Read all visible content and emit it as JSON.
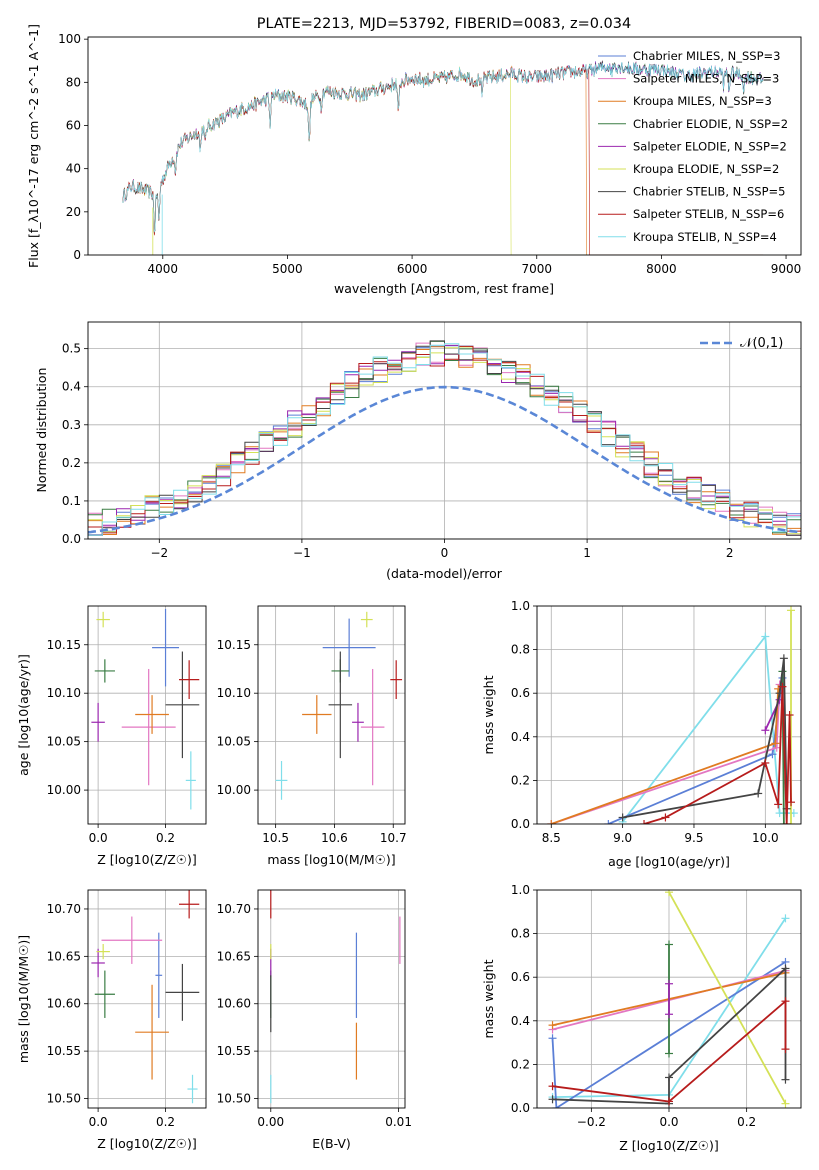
{
  "series": [
    {
      "name": "Chabrier MILES, N_SSP=3",
      "color": "#5b7fd6"
    },
    {
      "name": "Salpeter MILES, N_SSP=3",
      "color": "#e377c2"
    },
    {
      "name": "Kroupa MILES, N_SSP=3",
      "color": "#e07b22"
    },
    {
      "name": "Chabrier ELODIE, N_SSP=2",
      "color": "#3a7d44"
    },
    {
      "name": "Salpeter ELODIE, N_SSP=2",
      "color": "#9b27af"
    },
    {
      "name": "Kroupa ELODIE, N_SSP=2",
      "color": "#d4e157"
    },
    {
      "name": "Chabrier STELIB, N_SSP=5",
      "color": "#444444"
    },
    {
      "name": "Salpeter STELIB, N_SSP=6",
      "color": "#b71c1c"
    },
    {
      "name": "Kroupa STELIB, N_SSP=4",
      "color": "#80deea"
    }
  ],
  "chart_data": [
    {
      "type": "line",
      "title": "PLATE=2213, MJD=53792, FIBERID=0083, z=0.034",
      "xlabel": "wavelength [Angstrom, rest frame]",
      "ylabel": "Flux [f_λ10^-17 erg cm^-2 s^-1 A^-1]",
      "xlim": [
        3400,
        9120
      ],
      "ylim": [
        0,
        101
      ],
      "xticks": [
        "4000",
        "5000",
        "6000",
        "7000",
        "8000",
        "9000"
      ],
      "yticks": [
        "0",
        "20",
        "40",
        "60",
        "80",
        "100"
      ],
      "legend_position": "top-right",
      "spectrum_envelope": [
        [
          3680,
          27
        ],
        [
          3750,
          32
        ],
        [
          3850,
          30
        ],
        [
          3950,
          28
        ],
        [
          4050,
          42
        ],
        [
          4150,
          52
        ],
        [
          4300,
          58
        ],
        [
          4450,
          62
        ],
        [
          4600,
          67
        ],
        [
          4750,
          70
        ],
        [
          4900,
          74
        ],
        [
          5050,
          73
        ],
        [
          5150,
          70
        ],
        [
          5300,
          76
        ],
        [
          5450,
          75
        ],
        [
          5600,
          74
        ],
        [
          5750,
          77
        ],
        [
          5900,
          80
        ],
        [
          6000,
          82
        ],
        [
          6100,
          81
        ],
        [
          6250,
          82
        ],
        [
          6400,
          84
        ],
        [
          6500,
          81
        ],
        [
          6600,
          82
        ],
        [
          6800,
          84
        ],
        [
          6950,
          82
        ],
        [
          7100,
          83
        ],
        [
          7200,
          84
        ],
        [
          7300,
          85
        ],
        [
          7400,
          85
        ],
        [
          7600,
          88
        ],
        [
          7800,
          86
        ],
        [
          8000,
          86
        ],
        [
          8200,
          83
        ],
        [
          8400,
          85
        ],
        [
          8600,
          84
        ],
        [
          8800,
          81
        ]
      ],
      "truncations": [
        {
          "series": 5,
          "drop_at": 6790
        },
        {
          "series": 7,
          "drop_at": 7420
        },
        {
          "series": 2,
          "drop_at": 7395
        }
      ]
    },
    {
      "type": "histogram",
      "xlabel": "(data-model)/error",
      "ylabel": "Normed distribution",
      "xlim": [
        -2.5,
        2.5
      ],
      "ylim": [
        0,
        0.57
      ],
      "xticks": [
        "−2",
        "−1",
        "0",
        "1",
        "2"
      ],
      "yticks": [
        "0.0",
        "0.1",
        "0.2",
        "0.3",
        "0.4",
        "0.5"
      ],
      "bin_width": 0.1,
      "reference": {
        "name": "𝒩(0,1)",
        "mean": 0,
        "sigma": 1
      },
      "legend_position": "top-right"
    },
    {
      "type": "scatter_errorbar",
      "xlabel": "Z [log10(Z/Z☉)]",
      "ylabel": "age  [log10(age/yr)]",
      "xlim": [
        -0.03,
        0.32
      ],
      "ylim": [
        9.965,
        10.19
      ],
      "xticks": [
        "0.0",
        "0.2"
      ],
      "yticks": [
        "10.00",
        "10.05",
        "10.10",
        "10.15"
      ],
      "points": [
        {
          "s": 0,
          "x": 0.2,
          "xerr": 0.04,
          "y": 10.147,
          "yerr": 0.04
        },
        {
          "s": 1,
          "x": 0.15,
          "xerr": 0.08,
          "y": 10.065,
          "yerr": 0.06
        },
        {
          "s": 2,
          "x": 0.16,
          "xerr": 0.05,
          "y": 10.078,
          "yerr": 0.02
        },
        {
          "s": 3,
          "x": 0.02,
          "xerr": 0.03,
          "y": 10.123,
          "yerr": 0.012
        },
        {
          "s": 4,
          "x": 0.0,
          "xerr": 0.02,
          "y": 10.07,
          "yerr": 0.02
        },
        {
          "s": 5,
          "x": 0.015,
          "xerr": 0.02,
          "y": 10.176,
          "yerr": 0.008
        },
        {
          "s": 6,
          "x": 0.25,
          "xerr": 0.05,
          "y": 10.088,
          "yerr": 0.055
        },
        {
          "s": 7,
          "x": 0.27,
          "xerr": 0.03,
          "y": 10.114,
          "yerr": 0.02
        },
        {
          "s": 8,
          "x": 0.275,
          "xerr": 0.015,
          "y": 10.01,
          "yerr": 0.03
        }
      ]
    },
    {
      "type": "scatter_errorbar",
      "xlabel": "mass [log10(M/M☉)]",
      "ylabel": "",
      "xlim": [
        10.47,
        10.72
      ],
      "ylim": [
        9.965,
        10.19
      ],
      "xticks": [
        "10.5",
        "10.6",
        "10.7"
      ],
      "yticks": [
        "10.00",
        "10.05",
        "10.10",
        "10.15"
      ],
      "points": [
        {
          "s": 0,
          "x": 10.625,
          "xerr": 0.045,
          "y": 10.147,
          "yerr": 0.03
        },
        {
          "s": 1,
          "x": 10.665,
          "xerr": 0.02,
          "y": 10.065,
          "yerr": 0.06
        },
        {
          "s": 2,
          "x": 10.57,
          "xerr": 0.025,
          "y": 10.078,
          "yerr": 0.02
        },
        {
          "s": 3,
          "x": 10.61,
          "xerr": 0.015,
          "y": 10.123,
          "yerr": 0.012
        },
        {
          "s": 4,
          "x": 10.64,
          "xerr": 0.01,
          "y": 10.07,
          "yerr": 0.02
        },
        {
          "s": 5,
          "x": 10.655,
          "xerr": 0.01,
          "y": 10.176,
          "yerr": 0.008
        },
        {
          "s": 6,
          "x": 10.61,
          "xerr": 0.02,
          "y": 10.088,
          "yerr": 0.055
        },
        {
          "s": 7,
          "x": 10.705,
          "xerr": 0.01,
          "y": 10.114,
          "yerr": 0.02
        },
        {
          "s": 8,
          "x": 10.51,
          "xerr": 0.01,
          "y": 10.01,
          "yerr": 0.02
        }
      ]
    },
    {
      "type": "line",
      "xlabel": "age  [log10(age/yr)]",
      "ylabel": "mass weight",
      "xlim": [
        8.4,
        10.25
      ],
      "ylim": [
        0,
        1
      ],
      "xticks": [
        "8.5",
        "9.0",
        "9.5",
        "10.0"
      ],
      "yticks": [
        "0.0",
        "0.2",
        "0.4",
        "0.6",
        "0.8",
        "1.0"
      ],
      "lines": [
        {
          "s": 8,
          "points": [
            [
              9.0,
              0.01
            ],
            [
              10.0,
              0.86
            ],
            [
              10.1,
              0.05
            ],
            [
              10.2,
              0.05
            ]
          ]
        },
        {
          "s": 0,
          "points": [
            [
              8.9,
              0.0
            ],
            [
              10.05,
              0.32
            ],
            [
              10.12,
              0.67
            ]
          ]
        },
        {
          "s": 1,
          "points": [
            [
              8.5,
              0.0
            ],
            [
              10.08,
              0.35
            ],
            [
              10.1,
              0.64
            ]
          ]
        },
        {
          "s": 2,
          "points": [
            [
              8.5,
              0.0
            ],
            [
              10.07,
              0.37
            ],
            [
              10.09,
              0.62
            ]
          ]
        },
        {
          "s": 3,
          "points": [
            [
              10.12,
              0.7
            ],
            [
              10.13,
              0.0
            ]
          ]
        },
        {
          "s": 4,
          "points": [
            [
              10.0,
              0.43
            ],
            [
              10.1,
              0.57
            ]
          ]
        },
        {
          "s": 5,
          "points": [
            [
              10.18,
              0.0
            ],
            [
              10.18,
              0.98
            ]
          ]
        },
        {
          "s": 6,
          "points": [
            [
              9.0,
              0.03
            ],
            [
              9.95,
              0.14
            ],
            [
              10.1,
              0.6
            ],
            [
              10.13,
              0.76
            ],
            [
              10.15,
              0.07
            ]
          ]
        },
        {
          "s": 7,
          "points": [
            [
              9.15,
              0.0
            ],
            [
              9.3,
              0.03
            ],
            [
              10.0,
              0.28
            ],
            [
              10.09,
              0.09
            ],
            [
              10.12,
              0.63
            ],
            [
              10.15,
              0.0
            ],
            [
              10.17,
              0.5
            ],
            [
              10.18,
              0.1
            ]
          ]
        }
      ]
    },
    {
      "type": "scatter_errorbar",
      "xlabel": "Z [log10(Z/Z☉)]",
      "ylabel": "mass [log10(M/M☉)]",
      "xlim": [
        -0.03,
        0.32
      ],
      "ylim": [
        10.49,
        10.72
      ],
      "xticks": [
        "0.0",
        "0.2"
      ],
      "yticks": [
        "10.50",
        "10.55",
        "10.60",
        "10.65",
        "10.70"
      ],
      "points": [
        {
          "s": 0,
          "x": 0.18,
          "xerr": 0.01,
          "y": 10.63,
          "yerr": 0.045
        },
        {
          "s": 1,
          "x": 0.1,
          "xerr": 0.09,
          "y": 10.667,
          "yerr": 0.025
        },
        {
          "s": 2,
          "x": 0.16,
          "xerr": 0.05,
          "y": 10.57,
          "yerr": 0.05
        },
        {
          "s": 3,
          "x": 0.02,
          "xerr": 0.03,
          "y": 10.61,
          "yerr": 0.025
        },
        {
          "s": 4,
          "x": 0.0,
          "xerr": 0.02,
          "y": 10.643,
          "yerr": 0.015
        },
        {
          "s": 5,
          "x": 0.015,
          "xerr": 0.02,
          "y": 10.655,
          "yerr": 0.008
        },
        {
          "s": 6,
          "x": 0.25,
          "xerr": 0.05,
          "y": 10.612,
          "yerr": 0.03
        },
        {
          "s": 7,
          "x": 0.27,
          "xerr": 0.03,
          "y": 10.705,
          "yerr": 0.015
        },
        {
          "s": 8,
          "x": 0.28,
          "xerr": 0.015,
          "y": 10.51,
          "yerr": 0.015
        }
      ]
    },
    {
      "type": "scatter_errorbar",
      "xlabel": "E(B-V)",
      "ylabel": "",
      "xlim": [
        -0.001,
        0.0105
      ],
      "ylim": [
        10.49,
        10.72
      ],
      "xticks": [
        "0.00",
        "0.01"
      ],
      "yticks": [
        "10.50",
        "10.55",
        "10.60",
        "10.65",
        "10.70"
      ],
      "points": [
        {
          "s": 0,
          "x": 0.0067,
          "xerr": 0,
          "y": 10.63,
          "yerr": 0.045
        },
        {
          "s": 1,
          "x": 0.0101,
          "xerr": 0,
          "y": 10.667,
          "yerr": 0.025
        },
        {
          "s": 2,
          "x": 0.0067,
          "xerr": 0,
          "y": 10.55,
          "yerr": 0.03
        },
        {
          "s": 3,
          "x": 0.0,
          "xerr": 0,
          "y": 10.61,
          "yerr": 0.025
        },
        {
          "s": 4,
          "x": 0.0,
          "xerr": 0,
          "y": 10.643,
          "yerr": 0.015
        },
        {
          "s": 5,
          "x": 0.0,
          "xerr": 0,
          "y": 10.655,
          "yerr": 0.008
        },
        {
          "s": 6,
          "x": 0.0,
          "xerr": 0,
          "y": 10.6,
          "yerr": 0.03
        },
        {
          "s": 7,
          "x": 0.0,
          "xerr": 0,
          "y": 10.705,
          "yerr": 0.015
        },
        {
          "s": 8,
          "x": 0.0,
          "xerr": 0,
          "y": 10.51,
          "yerr": 0.015
        }
      ]
    },
    {
      "type": "line",
      "xlabel": "Z [log10(Z/Z☉)]",
      "ylabel": "mass weight",
      "xlim": [
        -0.34,
        0.34
      ],
      "ylim": [
        0,
        1
      ],
      "xticks": [
        "−0.2",
        "0.0",
        "0.2"
      ],
      "yticks": [
        "0.0",
        "0.2",
        "0.4",
        "0.6",
        "0.8",
        "1.0"
      ],
      "lines": [
        {
          "s": 8,
          "points": [
            [
              -0.3,
              0.05
            ],
            [
              0.0,
              0.06
            ],
            [
              0.3,
              0.87
            ]
          ]
        },
        {
          "s": 0,
          "points": [
            [
              -0.3,
              0.32
            ],
            [
              -0.29,
              0.0
            ],
            [
              0.3,
              0.67
            ]
          ]
        },
        {
          "s": 1,
          "points": [
            [
              -0.3,
              0.36
            ],
            [
              0.3,
              0.63
            ]
          ]
        },
        {
          "s": 2,
          "points": [
            [
              -0.3,
              0.38
            ],
            [
              0.3,
              0.62
            ]
          ]
        },
        {
          "s": 3,
          "points": [
            [
              0.0,
              0.25
            ],
            [
              0.0,
              0.75
            ]
          ]
        },
        {
          "s": 4,
          "points": [
            [
              0.0,
              0.43
            ],
            [
              0.0,
              0.57
            ]
          ]
        },
        {
          "s": 5,
          "points": [
            [
              0.0,
              0.99
            ],
            [
              0.3,
              0.02
            ]
          ]
        },
        {
          "s": 6,
          "points": [
            [
              -0.3,
              0.04
            ],
            [
              0.0,
              0.02
            ],
            [
              0.0,
              0.14
            ],
            [
              0.3,
              0.64
            ],
            [
              0.3,
              0.13
            ]
          ]
        },
        {
          "s": 7,
          "points": [
            [
              -0.3,
              0.1
            ],
            [
              0.0,
              0.03
            ],
            [
              0.3,
              0.49
            ],
            [
              0.3,
              0.27
            ]
          ]
        }
      ]
    }
  ]
}
